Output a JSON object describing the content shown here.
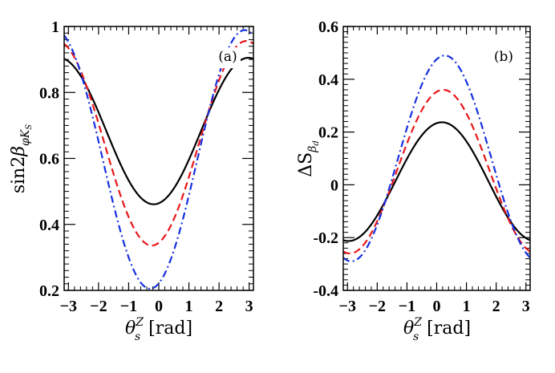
{
  "chart_data": [
    {
      "type": "line",
      "panel_label": "(a)",
      "x_var": "θ",
      "x_sub": "s",
      "x_sup": "Z",
      "x_unit": "[rad]",
      "y_func": "sin2",
      "y_var": "β",
      "y_sub": "φK",
      "y_subsub": "S",
      "xlim": [
        -3.14159,
        3.14159
      ],
      "ylim": [
        0.2,
        1.0
      ],
      "xticks": [
        -3,
        -2,
        -1,
        0,
        1,
        2,
        3
      ],
      "xtick_labels": [
        "−3",
        "−2",
        "−1",
        "0",
        "1",
        "2",
        "3"
      ],
      "yticks": [
        0.2,
        0.4,
        0.6,
        0.8,
        1.0
      ],
      "ytick_labels": [
        "0.2",
        "0.4",
        "0.6",
        "0.8",
        "1"
      ],
      "legend_position": "none",
      "series": [
        {
          "name": "solid",
          "color": "#000000",
          "dash": "solid",
          "model": {
            "c": 0.683,
            "a": -0.222,
            "phi": 0.17
          }
        },
        {
          "name": "dashed",
          "color": "#e8161b",
          "dash": "dashed",
          "model": {
            "c": 0.646,
            "a": -0.31,
            "phi": 0.235
          }
        },
        {
          "name": "dash-dot",
          "color": "#1530e0",
          "dash": "dashdot",
          "model": {
            "c": 0.597,
            "a": -0.392,
            "phi": 0.29
          }
        }
      ]
    },
    {
      "type": "line",
      "panel_label": "(b)",
      "x_var": "θ",
      "x_sub": "s",
      "x_sup": "Z",
      "x_unit": "[rad]",
      "y_func": "ΔS",
      "y_var": "",
      "y_sub": "β",
      "y_subsub": "d",
      "xlim": [
        -3.14159,
        3.14159
      ],
      "ylim": [
        -0.4,
        0.6
      ],
      "xticks": [
        -3,
        -2,
        -1,
        0,
        1,
        2,
        3
      ],
      "xtick_labels": [
        "−3",
        "−2",
        "−1",
        "0",
        "1",
        "2",
        "3"
      ],
      "yticks": [
        -0.4,
        -0.2,
        0,
        0.2,
        0.4,
        0.6
      ],
      "ytick_labels": [
        "-0.4",
        "-0.2",
        "0",
        "0.2",
        "0.4",
        "0.6"
      ],
      "legend_position": "none",
      "series": [
        {
          "name": "solid",
          "color": "#000000",
          "dash": "solid",
          "model": {
            "c": 0.012,
            "a": 0.225,
            "phi": -0.175
          }
        },
        {
          "name": "dashed",
          "color": "#e8161b",
          "dash": "dashed",
          "model": {
            "c": 0.05,
            "a": 0.31,
            "phi": -0.22
          }
        },
        {
          "name": "dash-dot",
          "color": "#1530e0",
          "dash": "dashdot",
          "model": {
            "c": 0.1,
            "a": 0.39,
            "phi": -0.27
          }
        }
      ]
    }
  ]
}
